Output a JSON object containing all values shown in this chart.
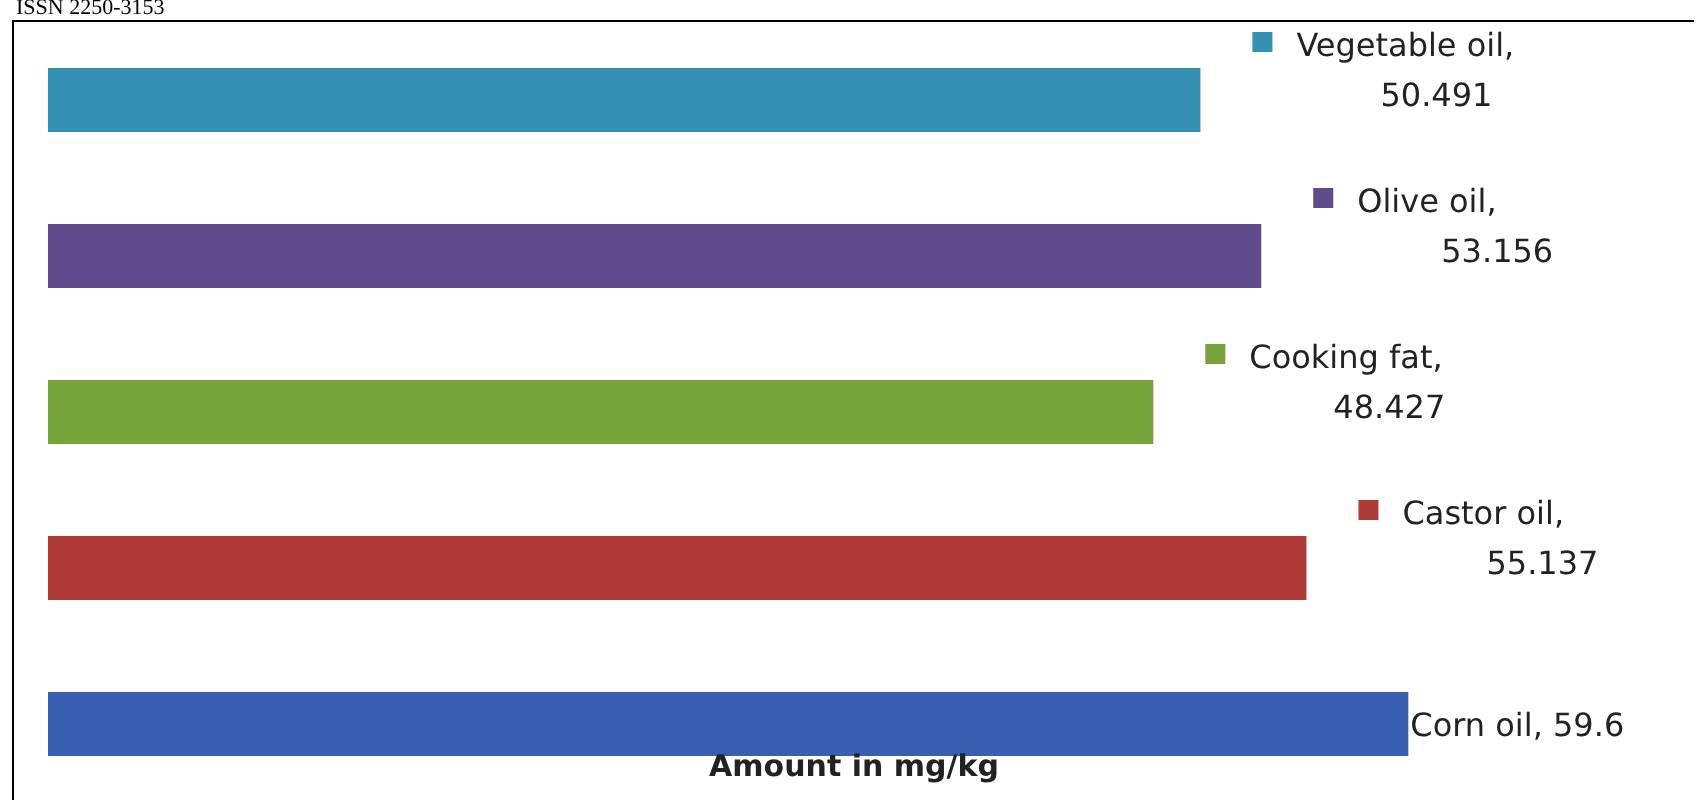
{
  "chart_data": {
    "type": "bar",
    "orientation": "horizontal",
    "xlabel": "Amount in mg/kg",
    "annotations": [
      "ISSN 2250-3153"
    ],
    "categories": [
      null,
      null,
      null,
      null,
      null
    ],
    "values": [
      50.491,
      53.156,
      48.427,
      55.137,
      59.6
    ],
    "value_labels": [
      "Vegetable oil, 50.491",
      "Olive oil, 53.156",
      "Cooking fat, 48.427",
      "Castor oil, 55.137",
      "Corn oil, 59.6"
    ],
    "colors": [
      "#3391b4",
      "#5f4a8b",
      "#77a33b",
      "#b03a36",
      "#3a5fb0"
    ]
  }
}
